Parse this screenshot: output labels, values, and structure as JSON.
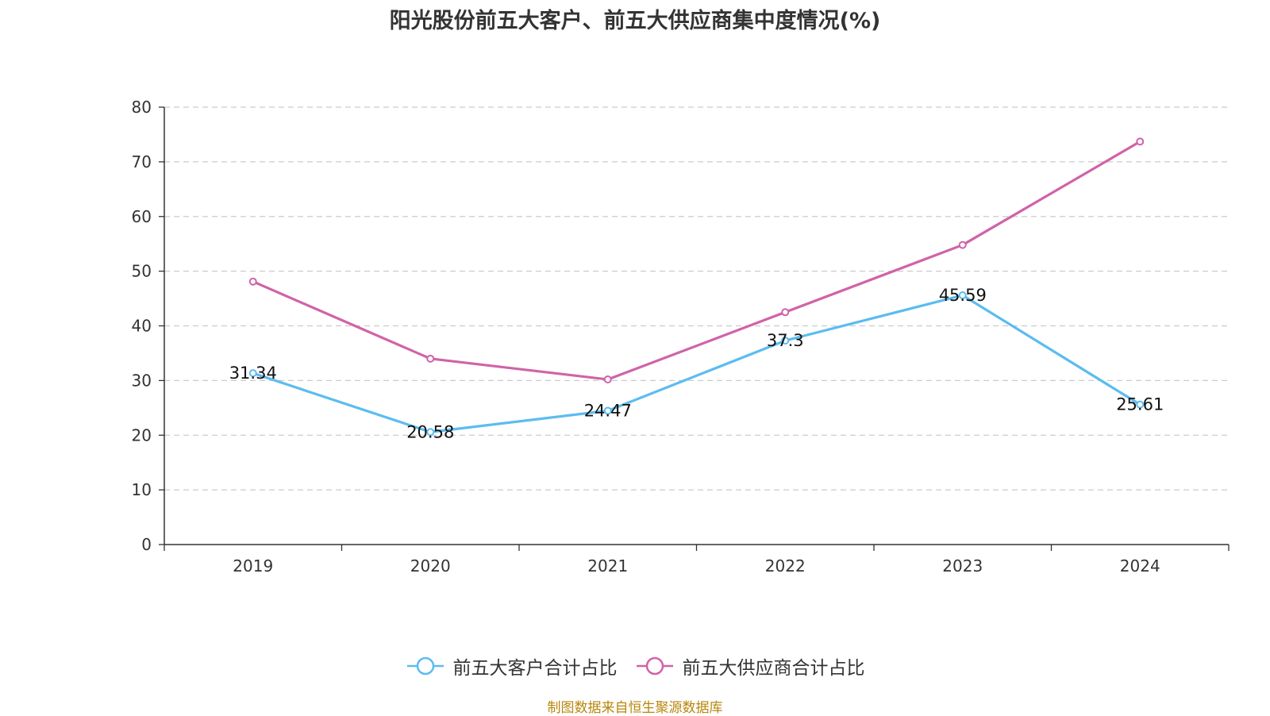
{
  "title": "阳光股份前五大客户、前五大供应商集中度情况(%)",
  "source": "制图数据来自恒生聚源数据库",
  "colors": {
    "customers": "#5bbcf0",
    "suppliers": "#d063a8",
    "grid": "#cccccc",
    "axis": "#333333",
    "source": "#b8860b"
  },
  "chart_data": {
    "type": "line",
    "title": "阳光股份前五大客户、前五大供应商集中度情况(%)",
    "x": [
      "2019",
      "2020",
      "2021",
      "2022",
      "2023",
      "2024"
    ],
    "ylim": [
      0,
      80
    ],
    "yticks": [
      0,
      10,
      20,
      30,
      40,
      50,
      60,
      70,
      80
    ],
    "grid": true,
    "legend_position": "bottom",
    "series": [
      {
        "name": "前五大客户合计占比",
        "color": "#5bbcf0",
        "values": [
          31.34,
          20.58,
          24.47,
          37.3,
          45.59,
          25.61
        ],
        "labels": [
          "31.34",
          "20.58",
          "24.47",
          "37.3",
          "45.59",
          "25.61"
        ]
      },
      {
        "name": "前五大供应商合计占比",
        "color": "#d063a8",
        "values": [
          48.1,
          34.0,
          30.2,
          42.5,
          54.8,
          73.7
        ]
      }
    ]
  }
}
